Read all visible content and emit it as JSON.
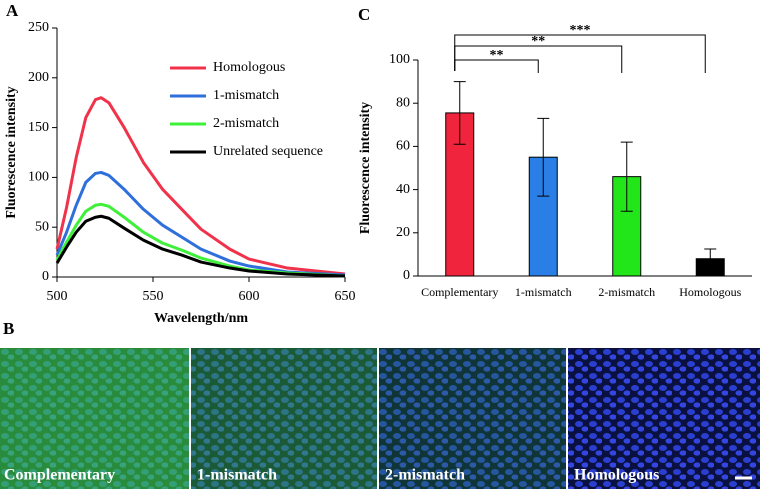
{
  "panel_labels": [
    "A",
    "B",
    "C"
  ],
  "chart_data": [
    {
      "type": "line",
      "xlabel": "Wavelength/nm",
      "ylabel": "Fluorescence intensity",
      "x": [
        500,
        505,
        510,
        515,
        520,
        523,
        527,
        535,
        545,
        555,
        565,
        575,
        590,
        600,
        620,
        650
      ],
      "xlim": [
        500,
        650
      ],
      "xticks": [
        500,
        550,
        600,
        650
      ],
      "ylim": [
        0,
        250
      ],
      "yticks": [
        0,
        50,
        100,
        150,
        200,
        250
      ],
      "legend": "upper right",
      "series": [
        {
          "name": "Homologous",
          "color": "#f0324b",
          "values": [
            28,
            70,
            120,
            160,
            178,
            180,
            175,
            150,
            115,
            88,
            68,
            48,
            28,
            18,
            9,
            3
          ]
        },
        {
          "name": "1-mismatch",
          "color": "#2f6fdb",
          "values": [
            22,
            45,
            72,
            95,
            104,
            105,
            102,
            88,
            68,
            52,
            40,
            28,
            16,
            11,
            5,
            2
          ]
        },
        {
          "name": "2-mismatch",
          "color": "#3ef03a",
          "values": [
            17,
            35,
            52,
            66,
            72,
            73,
            71,
            60,
            45,
            34,
            27,
            19,
            11,
            7,
            4,
            1
          ]
        },
        {
          "name": "Unrelated sequence",
          "color": "#000000",
          "values": [
            14,
            30,
            45,
            56,
            60,
            61,
            59,
            49,
            37,
            28,
            22,
            15,
            9,
            6,
            3,
            1
          ]
        }
      ]
    },
    {
      "type": "bar",
      "ylabel": "Fluorescence intensity",
      "categories": [
        "Complementary",
        "1-mismatch",
        "2-mismatch",
        "Homologous"
      ],
      "values": [
        75.5,
        55,
        46,
        8
      ],
      "errors": [
        14.5,
        18,
        16,
        4.5
      ],
      "colors": [
        "#f0243c",
        "#2a7fe6",
        "#22e619",
        "#000000"
      ],
      "ylim": [
        0,
        100
      ],
      "yticks": [
        0,
        20,
        40,
        60,
        80,
        100
      ],
      "annotations": [
        {
          "from": 0,
          "to": 1,
          "label": "**"
        },
        {
          "from": 0,
          "to": 2,
          "label": "**"
        },
        {
          "from": 0,
          "to": 3,
          "label": "***"
        }
      ]
    }
  ],
  "panel_b": {
    "captions": [
      "Complementary",
      "1-mismatch",
      "2-mismatch",
      "Homologous"
    ]
  }
}
